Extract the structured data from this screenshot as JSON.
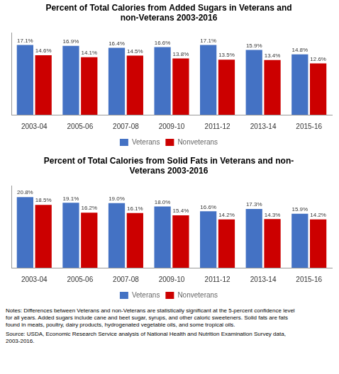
{
  "chart_data": [
    {
      "type": "bar",
      "title": "Percent of Total Calories from Added Sugars in Veterans and\nnon-Veterans 2003-2016",
      "categories": [
        "2003-04",
        "2005-06",
        "2007-08",
        "2009-10",
        "2011-12",
        "2013-14",
        "2015-16"
      ],
      "series": [
        {
          "name": "Veterans",
          "color": "#4472C4",
          "values": [
            17.1,
            16.9,
            16.4,
            16.6,
            17.1,
            15.9,
            14.8
          ],
          "value_labels": [
            "17.1%",
            "16.9%",
            "16.4%",
            "16.6%",
            "17.1%",
            "15.9%",
            "14.8%"
          ]
        },
        {
          "name": "Nonveterans",
          "color": "#CC0000",
          "values": [
            14.6,
            14.1,
            14.5,
            13.8,
            13.5,
            13.4,
            12.6
          ],
          "value_labels": [
            "14.6%",
            "14.1%",
            "14.5%",
            "13.8%",
            "13.5%",
            "13.4%",
            "12.6%"
          ]
        }
      ],
      "ylim": [
        0,
        20
      ],
      "grid": false,
      "legend": "bottom",
      "data_labels": true,
      "tick_labels": "x"
    },
    {
      "type": "bar",
      "title": "Percent of Total Calories from Solid Fats in Veterans and non-\nVeterans 2003-2016",
      "categories": [
        "2003-04",
        "2005-06",
        "2007-08",
        "2009-10",
        "2011-12",
        "2013-14",
        "2015-16"
      ],
      "series": [
        {
          "name": "Veterans",
          "color": "#4472C4",
          "values": [
            20.8,
            19.1,
            19.0,
            18.0,
            16.6,
            17.3,
            15.9
          ],
          "value_labels": [
            "20.8%",
            "19.1%",
            "19.0%",
            "18.0%",
            "16.6%",
            "17.3%",
            "15.9%"
          ]
        },
        {
          "name": "Nonveterans",
          "color": "#CC0000",
          "values": [
            18.5,
            16.2,
            16.1,
            15.4,
            14.2,
            14.3,
            14.2
          ],
          "value_labels": [
            "18.5%",
            "16.2%",
            "16.1%",
            "15.4%",
            "14.2%",
            "14.3%",
            "14.2%"
          ]
        }
      ],
      "ylim": [
        0,
        24
      ],
      "grid": false,
      "legend": "bottom",
      "data_labels": true,
      "tick_labels": "x"
    }
  ],
  "annotations": [
    "Notes: Differences between Veterans and non-Veterans are statistically significant at the 5-percent confidence level",
    "for all years. Added sugars include cane and beet sugar, syrups, and other caloric sweeteners. Solid fats are fats",
    "found in meats, poultry, dairy products, hydrogenated vegetable oils, and some tropical oils.",
    "Source: USDA, Economic Research Service analysis of National Health and Nutrition Examination Survey data,",
    "2003-2016."
  ]
}
